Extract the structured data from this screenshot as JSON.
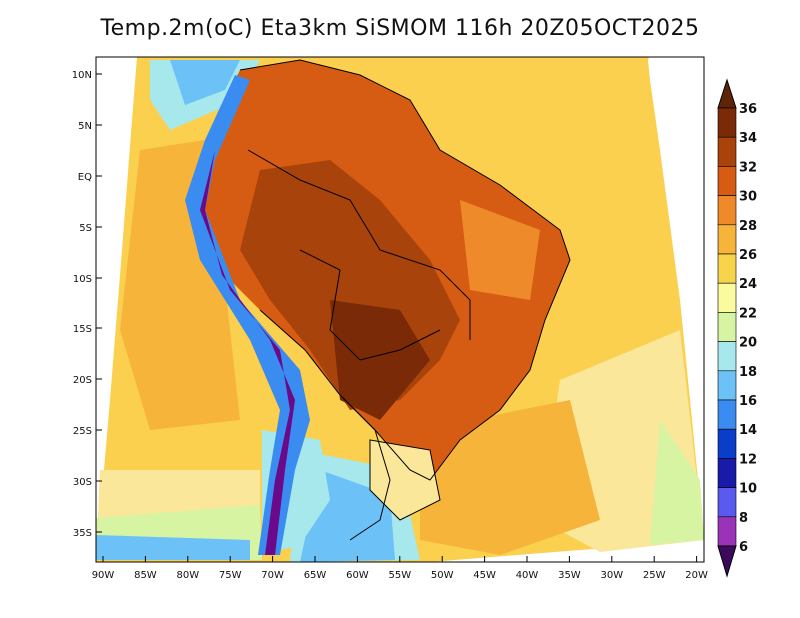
{
  "title": "Temp.2m(oC) Eta3km SiSMOM 116h 20Z05OCT2025",
  "lat_ticks": [
    "10N",
    "5N",
    "EQ",
    "5S",
    "10S",
    "15S",
    "20S",
    "25S",
    "30S",
    "35S"
  ],
  "lon_ticks": [
    "90W",
    "85W",
    "80W",
    "75W",
    "70W",
    "65W",
    "60W",
    "55W",
    "50W",
    "45W",
    "40W",
    "35W",
    "30W",
    "25W",
    "20W"
  ],
  "colorbar": {
    "labels": [
      "6",
      "8",
      "10",
      "12",
      "14",
      "16",
      "18",
      "20",
      "22",
      "24",
      "26",
      "28",
      "30",
      "32",
      "34",
      "36"
    ],
    "colors": [
      "#6a0a8a",
      "#9a33b8",
      "#5a5aee",
      "#1a1aa8",
      "#0a3ec8",
      "#3a8cf0",
      "#6cc2f6",
      "#a6e8ec",
      "#d6f4a2",
      "#fafa9e",
      "#f8d44a",
      "#f6b43a",
      "#ef8a2a",
      "#d65c14",
      "#a8430c",
      "#7a2a06"
    ],
    "low_color": "#3c0a5c",
    "high_color": "#5e2406"
  }
}
